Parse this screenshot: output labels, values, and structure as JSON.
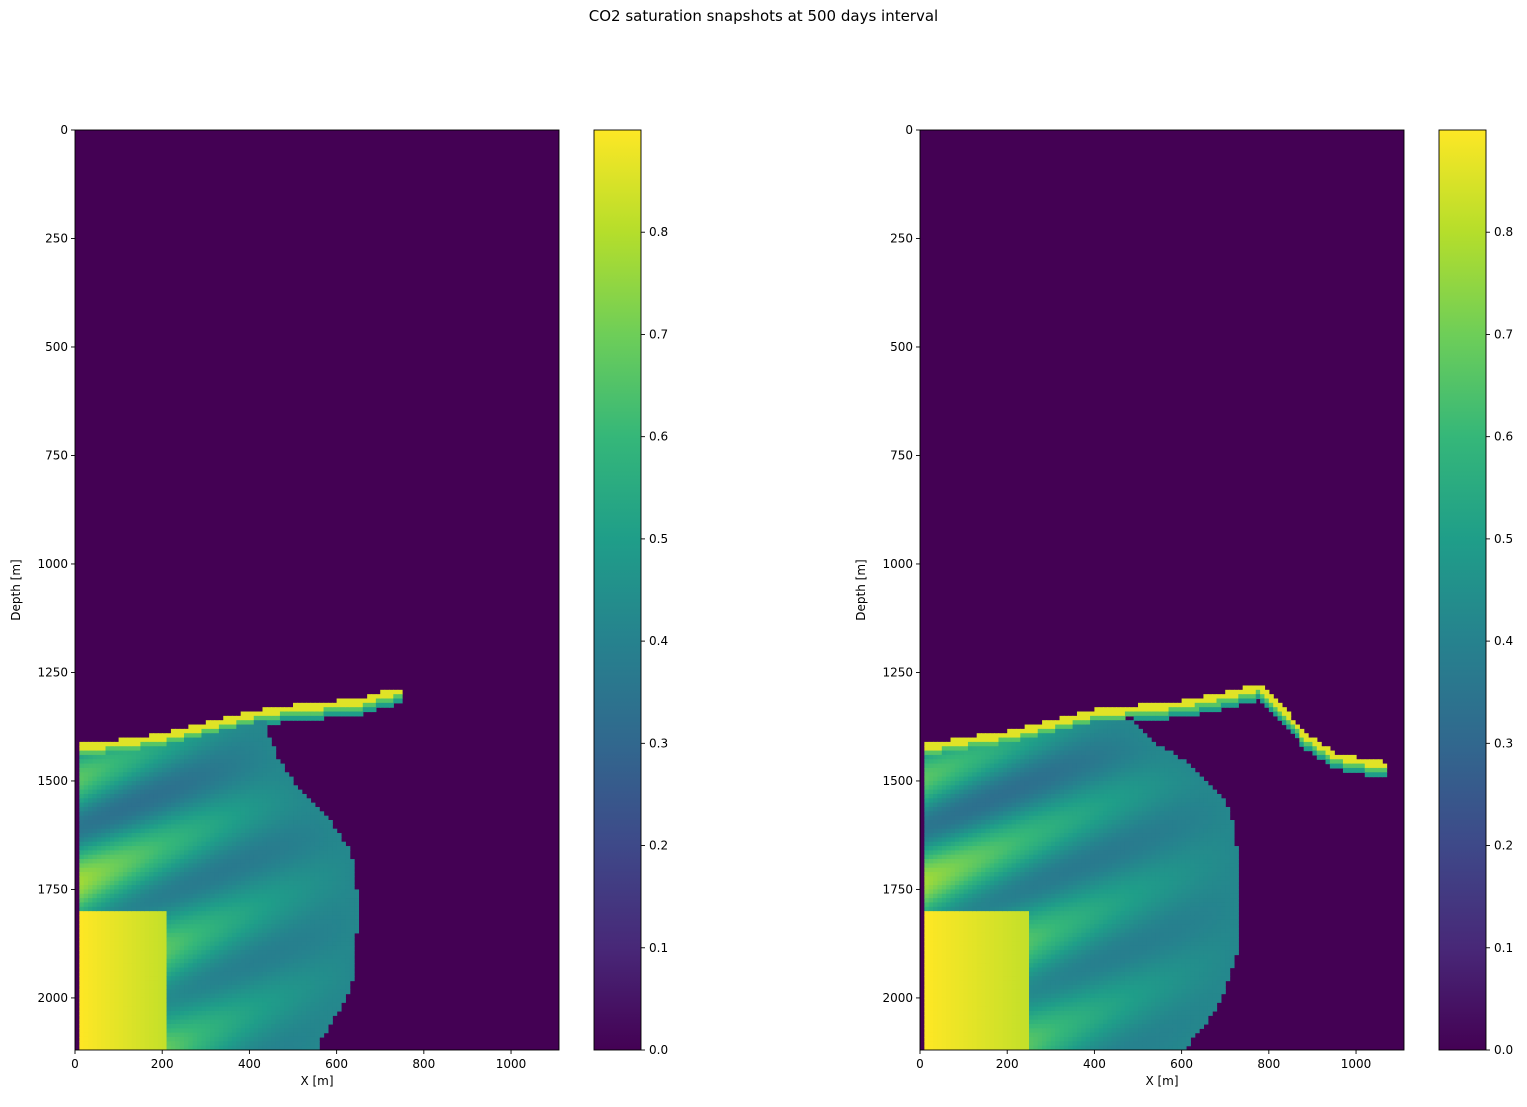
{
  "figure": {
    "title": "CO2 saturation snapshots at 500 days interval"
  },
  "colormap": {
    "name": "viridis",
    "stops": [
      "#440154",
      "#482878",
      "#3e4989",
      "#31688e",
      "#26828e",
      "#1f9e89",
      "#35b779",
      "#6ece58",
      "#b5de2b",
      "#fde725"
    ]
  },
  "chart_data": [
    {
      "type": "heatmap",
      "name": "snapshot-1",
      "xlabel": "X [m]",
      "ylabel": "Depth [m]",
      "xlim": [
        0,
        1110
      ],
      "ylim": [
        2120,
        0
      ],
      "xticks": [
        0,
        200,
        400,
        600,
        800,
        1000
      ],
      "yticks": [
        0,
        250,
        500,
        750,
        1000,
        1250,
        1500,
        1750,
        2000
      ],
      "colorbar": {
        "range": [
          0,
          0.9
        ],
        "ticks": [
          0.0,
          0.1,
          0.2,
          0.3,
          0.4,
          0.5,
          0.6,
          0.7,
          0.8
        ]
      },
      "background_value": 0.0,
      "plume_top_depth": [
        [
          10,
          1420
        ],
        [
          100,
          1410
        ],
        [
          200,
          1395
        ],
        [
          300,
          1370
        ],
        [
          400,
          1345
        ],
        [
          450,
          1335
        ],
        [
          550,
          1325
        ],
        [
          650,
          1315
        ],
        [
          740,
          1290
        ]
      ],
      "plume_right_edge_x": [
        [
          1350,
          440
        ],
        [
          1400,
          445
        ],
        [
          1450,
          465
        ],
        [
          1500,
          500
        ],
        [
          1550,
          545
        ],
        [
          1600,
          590
        ],
        [
          1650,
          625
        ],
        [
          1700,
          640
        ],
        [
          1750,
          645
        ],
        [
          1850,
          645
        ],
        [
          1950,
          640
        ],
        [
          2000,
          620
        ],
        [
          2050,
          590
        ],
        [
          2100,
          560
        ],
        [
          2120,
          555
        ]
      ],
      "thin_layer_tip_x": 740,
      "max_saturation_zone": {
        "x_range": [
          10,
          200
        ],
        "depth_range": [
          1800,
          2120
        ],
        "value": 0.9
      }
    },
    {
      "type": "heatmap",
      "name": "snapshot-2",
      "xlabel": "X [m]",
      "ylabel": "Depth [m]",
      "xlim": [
        0,
        1110
      ],
      "ylim": [
        2120,
        0
      ],
      "xticks": [
        0,
        200,
        400,
        600,
        800,
        1000
      ],
      "yticks": [
        0,
        250,
        500,
        750,
        1000,
        1250,
        1500,
        1750,
        2000
      ],
      "colorbar": {
        "range": [
          0,
          0.9
        ],
        "ticks": [
          0.0,
          0.1,
          0.2,
          0.3,
          0.4,
          0.5,
          0.6,
          0.7,
          0.8
        ]
      },
      "background_value": 0.0,
      "plume_top_depth": [
        [
          10,
          1420
        ],
        [
          100,
          1405
        ],
        [
          200,
          1390
        ],
        [
          300,
          1365
        ],
        [
          400,
          1340
        ],
        [
          500,
          1330
        ],
        [
          600,
          1320
        ],
        [
          700,
          1300
        ],
        [
          780,
          1280
        ],
        [
          830,
          1330
        ],
        [
          880,
          1390
        ],
        [
          950,
          1440
        ],
        [
          1060,
          1460
        ]
      ],
      "plume_right_edge_x": [
        [
          1360,
          490
        ],
        [
          1400,
          520
        ],
        [
          1450,
          600
        ],
        [
          1500,
          660
        ],
        [
          1550,
          700
        ],
        [
          1600,
          720
        ],
        [
          1650,
          725
        ],
        [
          1700,
          730
        ],
        [
          1800,
          730
        ],
        [
          1900,
          725
        ],
        [
          1950,
          710
        ],
        [
          2000,
          690
        ],
        [
          2050,
          660
        ],
        [
          2100,
          620
        ],
        [
          2120,
          610
        ]
      ],
      "thin_layer_tip_x": 1060,
      "max_saturation_zone": {
        "x_range": [
          10,
          240
        ],
        "depth_range": [
          1800,
          2120
        ],
        "value": 0.9
      }
    }
  ]
}
